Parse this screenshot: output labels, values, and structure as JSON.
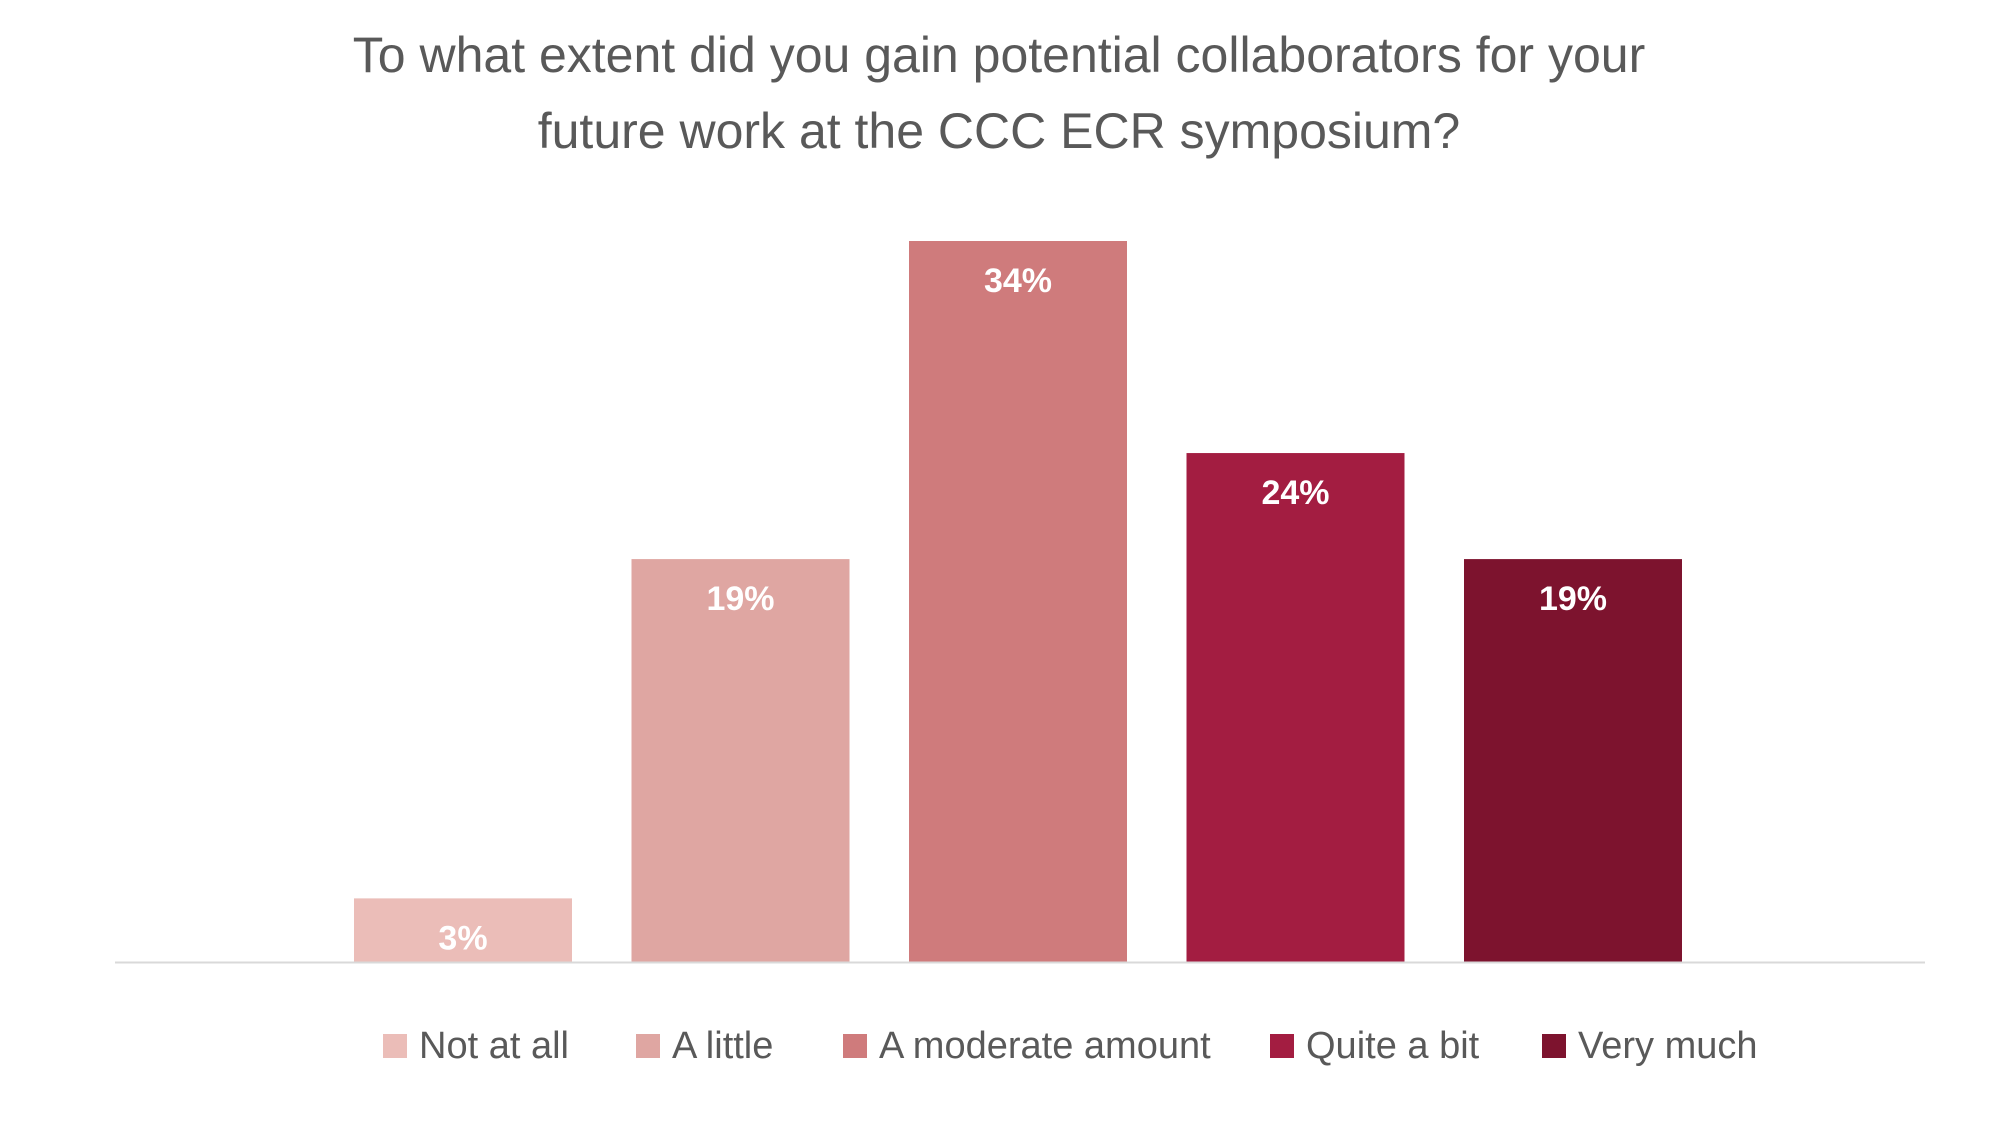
{
  "chart_data": {
    "type": "bar",
    "title_lines": [
      "To what extent did you gain potential collaborators for your",
      "future work at the CCC ECR symposium?"
    ],
    "categories": [
      "Not at all",
      "A little",
      "A moderate amount",
      "Quite a bit",
      "Very much"
    ],
    "values": [
      3,
      19,
      34,
      24,
      19
    ],
    "value_labels": [
      "3%",
      "19%",
      "34%",
      "24%",
      "19%"
    ],
    "colors": [
      "#ebbdb8",
      "#dfa6a2",
      "#cf7b7c",
      "#a31d41",
      "#7d132e"
    ],
    "ylim": [
      0,
      34
    ],
    "grid": false,
    "legend_position": "bottom",
    "xlabel": "",
    "ylabel": ""
  },
  "colors": {
    "title": "#595959",
    "legend_text": "#595959",
    "axis_line": "#d9d9d9",
    "data_label": "#ffffff"
  }
}
